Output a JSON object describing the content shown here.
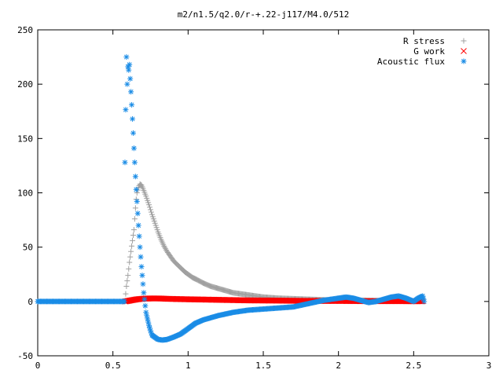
{
  "chart_data": {
    "type": "scatter",
    "title": "m2/n1.5/q2.0/r-+.22-j117/M4.0/512",
    "xlabel": "",
    "ylabel": "",
    "xlim": [
      0,
      3
    ],
    "ylim": [
      -50,
      250
    ],
    "x_ticks": [
      0,
      0.5,
      1,
      1.5,
      2,
      2.5,
      3
    ],
    "x_tick_labels": [
      "0",
      "0.5",
      "1",
      "1.5",
      "2",
      "2.5",
      "3"
    ],
    "y_ticks": [
      -50,
      0,
      50,
      100,
      150,
      200,
      250
    ],
    "y_tick_labels": [
      "-50",
      "0",
      "50",
      "100",
      "150",
      "200",
      "250"
    ],
    "grid": false,
    "legend_position": "top-right",
    "series": [
      {
        "name": "R stress",
        "marker": "plus",
        "color": "#a0a0a0",
        "points": [
          [
            0.58,
            0
          ],
          [
            0.59,
            14
          ],
          [
            0.6,
            24
          ],
          [
            0.61,
            36
          ],
          [
            0.62,
            46
          ],
          [
            0.63,
            56
          ],
          [
            0.64,
            66
          ],
          [
            0.645,
            76
          ],
          [
            0.65,
            86
          ],
          [
            0.655,
            94
          ],
          [
            0.66,
            100
          ],
          [
            0.67,
            105
          ],
          [
            0.68,
            108
          ],
          [
            0.69,
            107
          ],
          [
            0.7,
            104
          ],
          [
            0.72,
            97
          ],
          [
            0.74,
            89
          ],
          [
            0.76,
            80
          ],
          [
            0.78,
            72
          ],
          [
            0.8,
            64
          ],
          [
            0.82,
            57
          ],
          [
            0.84,
            51
          ],
          [
            0.86,
            46
          ],
          [
            0.88,
            42
          ],
          [
            0.9,
            38
          ],
          [
            0.92,
            35
          ],
          [
            0.95,
            31
          ],
          [
            0.98,
            27
          ],
          [
            1.0,
            25
          ],
          [
            1.03,
            22
          ],
          [
            1.06,
            20
          ],
          [
            1.1,
            17
          ],
          [
            1.15,
            14
          ],
          [
            1.2,
            12
          ],
          [
            1.25,
            10
          ],
          [
            1.3,
            8
          ],
          [
            1.4,
            6
          ],
          [
            1.5,
            4
          ],
          [
            1.6,
            3
          ],
          [
            1.8,
            2
          ],
          [
            2.0,
            1
          ],
          [
            2.2,
            1
          ],
          [
            2.4,
            0.5
          ],
          [
            2.56,
            0.5
          ]
        ]
      },
      {
        "name": "G work",
        "marker": "cross",
        "color": "#ff0000",
        "points": [
          [
            0.58,
            0
          ],
          [
            0.62,
            1
          ],
          [
            0.66,
            2
          ],
          [
            0.7,
            2.5
          ],
          [
            0.75,
            2.8
          ],
          [
            0.8,
            2.8
          ],
          [
            0.85,
            2.5
          ],
          [
            0.9,
            2.3
          ],
          [
            1.0,
            2
          ],
          [
            1.2,
            1.5
          ],
          [
            1.4,
            1
          ],
          [
            1.6,
            0.8
          ],
          [
            1.8,
            0.5
          ],
          [
            2.0,
            0.5
          ],
          [
            2.2,
            0.3
          ],
          [
            2.4,
            0.3
          ],
          [
            2.56,
            0.2
          ]
        ]
      },
      {
        "name": "Acoustic flux",
        "marker": "star",
        "color": "#1a8ce6",
        "points": [
          [
            0.58,
            128
          ],
          [
            0.59,
            225
          ],
          [
            0.595,
            200
          ],
          [
            0.6,
            216
          ],
          [
            0.605,
            213
          ],
          [
            0.61,
            218
          ],
          [
            0.615,
            205
          ],
          [
            0.62,
            193
          ],
          [
            0.625,
            181
          ],
          [
            0.63,
            168
          ],
          [
            0.635,
            155
          ],
          [
            0.64,
            141
          ],
          [
            0.645,
            128
          ],
          [
            0.65,
            115
          ],
          [
            0.655,
            103
          ],
          [
            0.66,
            92
          ],
          [
            0.665,
            81
          ],
          [
            0.67,
            70
          ],
          [
            0.675,
            60
          ],
          [
            0.68,
            50
          ],
          [
            0.685,
            41
          ],
          [
            0.69,
            32
          ],
          [
            0.695,
            24
          ],
          [
            0.7,
            16
          ],
          [
            0.705,
            8
          ],
          [
            0.71,
            2
          ],
          [
            0.715,
            -4
          ],
          [
            0.72,
            -10
          ],
          [
            0.73,
            -16
          ],
          [
            0.74,
            -22
          ],
          [
            0.75,
            -27
          ],
          [
            0.76,
            -31
          ],
          [
            0.78,
            -33
          ],
          [
            0.8,
            -35
          ],
          [
            0.83,
            -35.5
          ],
          [
            0.86,
            -35
          ],
          [
            0.9,
            -33
          ],
          [
            0.95,
            -30
          ],
          [
            1.0,
            -25
          ],
          [
            1.05,
            -20
          ],
          [
            1.1,
            -17
          ],
          [
            1.2,
            -13
          ],
          [
            1.3,
            -10
          ],
          [
            1.4,
            -8
          ],
          [
            1.5,
            -7
          ],
          [
            1.6,
            -6
          ],
          [
            1.7,
            -5
          ],
          [
            1.8,
            -2
          ],
          [
            1.9,
            1
          ],
          [
            2.0,
            3
          ],
          [
            2.05,
            4
          ],
          [
            2.1,
            3
          ],
          [
            2.15,
            1
          ],
          [
            2.2,
            -1
          ],
          [
            2.25,
            0
          ],
          [
            2.3,
            2
          ],
          [
            2.35,
            4
          ],
          [
            2.4,
            5
          ],
          [
            2.45,
            3
          ],
          [
            2.5,
            0
          ],
          [
            2.53,
            3
          ],
          [
            2.56,
            5
          ],
          [
            2.57,
            0
          ]
        ]
      }
    ]
  }
}
